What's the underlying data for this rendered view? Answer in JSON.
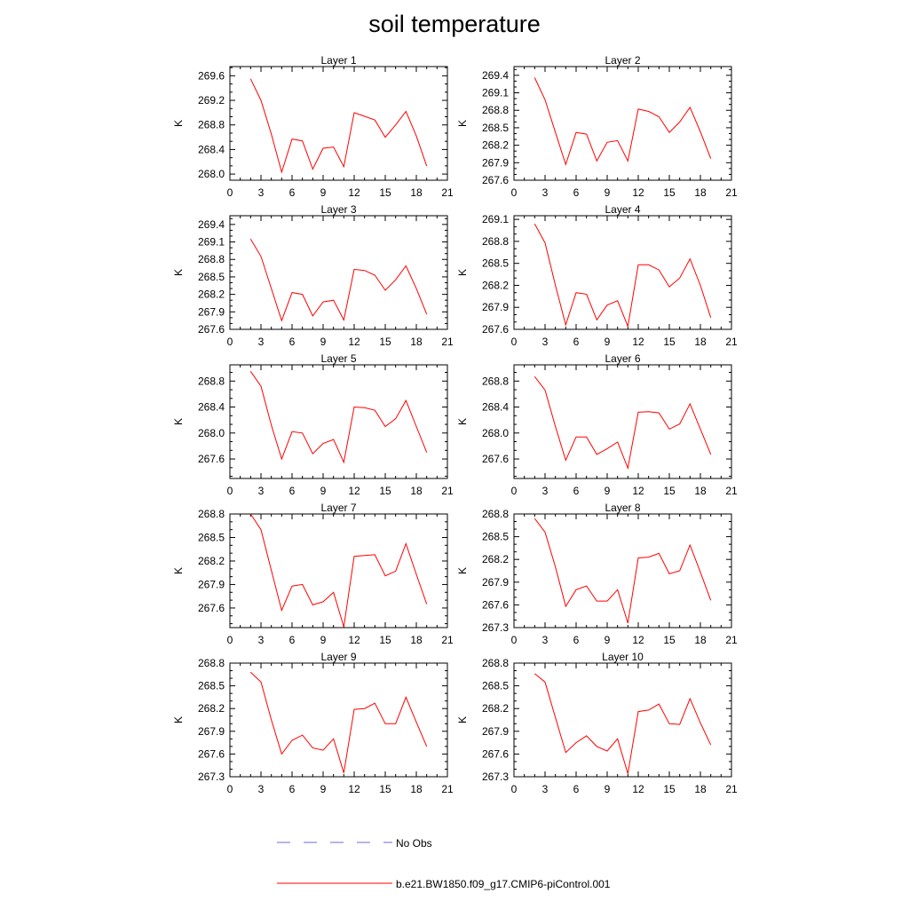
{
  "figure": {
    "title": "soil temperature",
    "legend": [
      {
        "label": "No Obs",
        "color": "#6a6ad8",
        "style": "dashed"
      },
      {
        "label": "b.e21.BW1850.f09_g17.CMIP6-piControl.001",
        "color": "#ff0000",
        "style": "solid"
      }
    ]
  },
  "chart_data": [
    {
      "type": "line",
      "title": "Layer 1",
      "ylabel": "K",
      "xlim": [
        0,
        21
      ],
      "xticks": [
        0,
        3,
        6,
        9,
        12,
        15,
        18,
        21
      ],
      "ylim": [
        267.9,
        269.75
      ],
      "yticks": [
        268.0,
        268.4,
        268.8,
        269.2,
        269.6
      ],
      "ytick_labels": [
        "268.0",
        "268.4",
        "268.8",
        "269.2",
        "269.6"
      ],
      "series": [
        {
          "name": "b.e21.BW1850.f09_g17.CMIP6-piControl.001",
          "color": "#ff0000",
          "x": [
            2,
            3,
            4,
            5,
            6,
            7,
            8,
            9,
            10,
            11,
            12,
            13,
            14,
            15,
            16,
            17,
            18,
            19
          ],
          "y": [
            269.55,
            269.2,
            268.65,
            268.03,
            268.57,
            268.54,
            268.08,
            268.42,
            268.44,
            268.12,
            269.0,
            268.94,
            268.88,
            268.6,
            268.8,
            269.02,
            268.62,
            268.13
          ]
        }
      ]
    },
    {
      "type": "line",
      "title": "Layer 2",
      "ylabel": "K",
      "xlim": [
        0,
        21
      ],
      "xticks": [
        0,
        3,
        6,
        9,
        12,
        15,
        18,
        21
      ],
      "ylim": [
        267.6,
        269.55
      ],
      "yticks": [
        267.6,
        267.9,
        268.2,
        268.5,
        268.8,
        269.1,
        269.4
      ],
      "ytick_labels": [
        "267.6",
        "267.9",
        "268.2",
        "268.5",
        "268.8",
        "269.1",
        "269.4"
      ],
      "series": [
        {
          "name": "b.e21.BW1850.f09_g17.CMIP6-piControl.001",
          "color": "#ff0000",
          "x": [
            2,
            3,
            4,
            5,
            6,
            7,
            8,
            9,
            10,
            11,
            12,
            13,
            14,
            15,
            16,
            17,
            18,
            19
          ],
          "y": [
            269.36,
            268.98,
            268.42,
            267.87,
            268.42,
            268.39,
            267.93,
            268.25,
            268.28,
            267.93,
            268.82,
            268.78,
            268.69,
            268.42,
            268.6,
            268.85,
            268.43,
            267.97
          ]
        }
      ]
    },
    {
      "type": "line",
      "title": "Layer 3",
      "ylabel": "K",
      "xlim": [
        0,
        21
      ],
      "xticks": [
        0,
        3,
        6,
        9,
        12,
        15,
        18,
        21
      ],
      "ylim": [
        267.6,
        269.55
      ],
      "yticks": [
        267.6,
        267.9,
        268.2,
        268.5,
        268.8,
        269.1,
        269.4
      ],
      "ytick_labels": [
        "267.6",
        "267.9",
        "268.2",
        "268.5",
        "268.8",
        "269.1",
        "269.4"
      ],
      "series": [
        {
          "name": "b.e21.BW1850.f09_g17.CMIP6-piControl.001",
          "color": "#ff0000",
          "x": [
            2,
            3,
            4,
            5,
            6,
            7,
            8,
            9,
            10,
            11,
            12,
            13,
            14,
            15,
            16,
            17,
            18,
            19
          ],
          "y": [
            269.15,
            268.85,
            268.3,
            267.75,
            268.23,
            268.2,
            267.83,
            268.07,
            268.1,
            267.76,
            268.63,
            268.61,
            268.53,
            268.27,
            268.45,
            268.69,
            268.3,
            267.86
          ]
        }
      ]
    },
    {
      "type": "line",
      "title": "Layer 4",
      "ylabel": "K",
      "xlim": [
        0,
        21
      ],
      "xticks": [
        0,
        3,
        6,
        9,
        12,
        15,
        18,
        21
      ],
      "ylim": [
        267.6,
        269.15
      ],
      "yticks": [
        267.6,
        267.9,
        268.2,
        268.5,
        268.8,
        269.1
      ],
      "ytick_labels": [
        "267.6",
        "267.9",
        "268.2",
        "268.5",
        "268.8",
        "269.1"
      ],
      "series": [
        {
          "name": "b.e21.BW1850.f09_g17.CMIP6-piControl.001",
          "color": "#ff0000",
          "x": [
            2,
            3,
            4,
            5,
            6,
            7,
            8,
            9,
            10,
            11,
            12,
            13,
            14,
            15,
            16,
            17,
            18,
            19
          ],
          "y": [
            269.04,
            268.78,
            268.2,
            267.66,
            268.1,
            268.08,
            267.73,
            267.93,
            267.99,
            267.64,
            268.48,
            268.48,
            268.41,
            268.18,
            268.3,
            268.56,
            268.2,
            267.76
          ]
        }
      ]
    },
    {
      "type": "line",
      "title": "Layer 5",
      "ylabel": "K",
      "xlim": [
        0,
        21
      ],
      "xticks": [
        0,
        3,
        6,
        9,
        12,
        15,
        18,
        21
      ],
      "ylim": [
        267.3,
        269.05
      ],
      "yticks": [
        267.6,
        268.0,
        268.4,
        268.8
      ],
      "ytick_labels": [
        "267.6",
        "268.0",
        "268.4",
        "268.8"
      ],
      "series": [
        {
          "name": "b.e21.BW1850.f09_g17.CMIP6-piControl.001",
          "color": "#ff0000",
          "x": [
            2,
            3,
            4,
            5,
            6,
            7,
            8,
            9,
            10,
            11,
            12,
            13,
            14,
            15,
            16,
            17,
            18,
            19
          ],
          "y": [
            268.95,
            268.72,
            268.12,
            267.6,
            268.02,
            268.0,
            267.68,
            267.84,
            267.9,
            267.55,
            268.4,
            268.39,
            268.35,
            268.1,
            268.22,
            268.5,
            268.1,
            267.7
          ]
        }
      ]
    },
    {
      "type": "line",
      "title": "Layer 6",
      "ylabel": "K",
      "xlim": [
        0,
        21
      ],
      "xticks": [
        0,
        3,
        6,
        9,
        12,
        15,
        18,
        21
      ],
      "ylim": [
        267.3,
        269.05
      ],
      "yticks": [
        267.6,
        268.0,
        268.4,
        268.8
      ],
      "ytick_labels": [
        "267.6",
        "268.0",
        "268.4",
        "268.8"
      ],
      "series": [
        {
          "name": "b.e21.BW1850.f09_g17.CMIP6-piControl.001",
          "color": "#ff0000",
          "x": [
            2,
            3,
            4,
            5,
            6,
            7,
            8,
            9,
            10,
            11,
            12,
            13,
            14,
            15,
            16,
            17,
            18,
            19
          ],
          "y": [
            268.87,
            268.66,
            268.1,
            267.58,
            267.94,
            267.94,
            267.67,
            267.76,
            267.86,
            267.46,
            268.32,
            268.33,
            268.31,
            268.06,
            268.14,
            268.45,
            268.06,
            267.67
          ]
        }
      ]
    },
    {
      "type": "line",
      "title": "Layer 7",
      "ylabel": "K",
      "xlim": [
        0,
        21
      ],
      "xticks": [
        0,
        3,
        6,
        9,
        12,
        15,
        18,
        21
      ],
      "ylim": [
        267.35,
        268.8
      ],
      "yticks": [
        267.6,
        267.9,
        268.2,
        268.5,
        268.8
      ],
      "ytick_labels": [
        "267.6",
        "267.9",
        "268.2",
        "268.5",
        "268.8"
      ],
      "series": [
        {
          "name": "b.e21.BW1850.f09_g17.CMIP6-piControl.001",
          "color": "#ff0000",
          "x": [
            2,
            3,
            4,
            5,
            6,
            7,
            8,
            9,
            10,
            11,
            12,
            13,
            14,
            15,
            16,
            17,
            18,
            19
          ],
          "y": [
            268.8,
            268.6,
            268.08,
            267.57,
            267.88,
            267.9,
            267.64,
            267.68,
            267.8,
            267.36,
            268.26,
            268.27,
            268.28,
            268.01,
            268.07,
            268.42,
            268.03,
            267.65
          ]
        }
      ]
    },
    {
      "type": "line",
      "title": "Layer 8",
      "ylabel": "K",
      "xlim": [
        0,
        21
      ],
      "xticks": [
        0,
        3,
        6,
        9,
        12,
        15,
        18,
        21
      ],
      "ylim": [
        267.3,
        268.8
      ],
      "yticks": [
        267.3,
        267.6,
        267.9,
        268.2,
        268.5,
        268.8
      ],
      "ytick_labels": [
        "267.3",
        "267.6",
        "267.9",
        "268.2",
        "268.5",
        "268.8"
      ],
      "series": [
        {
          "name": "b.e21.BW1850.f09_g17.CMIP6-piControl.001",
          "color": "#ff0000",
          "x": [
            2,
            3,
            4,
            5,
            6,
            7,
            8,
            9,
            10,
            11,
            12,
            13,
            14,
            15,
            16,
            17,
            18,
            19
          ],
          "y": [
            268.74,
            268.56,
            268.1,
            267.58,
            267.8,
            267.85,
            267.65,
            267.65,
            267.8,
            267.36,
            268.22,
            268.23,
            268.28,
            268.01,
            268.05,
            268.39,
            268.03,
            267.66
          ]
        }
      ]
    },
    {
      "type": "line",
      "title": "Layer 9",
      "ylabel": "K",
      "xlim": [
        0,
        21
      ],
      "xticks": [
        0,
        3,
        6,
        9,
        12,
        15,
        18,
        21
      ],
      "ylim": [
        267.3,
        268.8
      ],
      "yticks": [
        267.3,
        267.6,
        267.9,
        268.2,
        268.5,
        268.8
      ],
      "ytick_labels": [
        "267.3",
        "267.6",
        "267.9",
        "268.2",
        "268.5",
        "268.8"
      ],
      "series": [
        {
          "name": "b.e21.BW1850.f09_g17.CMIP6-piControl.001",
          "color": "#ff0000",
          "x": [
            2,
            3,
            4,
            5,
            6,
            7,
            8,
            9,
            10,
            11,
            12,
            13,
            14,
            15,
            16,
            17,
            18,
            19
          ],
          "y": [
            268.68,
            268.55,
            268.05,
            267.6,
            267.78,
            267.85,
            267.68,
            267.65,
            267.8,
            267.35,
            268.19,
            268.2,
            268.27,
            268.0,
            268.0,
            268.35,
            268.02,
            267.7
          ]
        }
      ]
    },
    {
      "type": "line",
      "title": "Layer 10",
      "ylabel": "K",
      "xlim": [
        0,
        21
      ],
      "xticks": [
        0,
        3,
        6,
        9,
        12,
        15,
        18,
        21
      ],
      "ylim": [
        267.3,
        268.8
      ],
      "yticks": [
        267.3,
        267.6,
        267.9,
        268.2,
        268.5,
        268.8
      ],
      "ytick_labels": [
        "267.3",
        "267.6",
        "267.9",
        "268.2",
        "268.5",
        "268.8"
      ],
      "series": [
        {
          "name": "b.e21.BW1850.f09_g17.CMIP6-piControl.001",
          "color": "#ff0000",
          "x": [
            2,
            3,
            4,
            5,
            6,
            7,
            8,
            9,
            10,
            11,
            12,
            13,
            14,
            15,
            16,
            17,
            18,
            19
          ],
          "y": [
            268.66,
            268.55,
            268.08,
            267.62,
            267.75,
            267.84,
            267.7,
            267.64,
            267.8,
            267.34,
            268.16,
            268.18,
            268.26,
            268.0,
            267.99,
            268.33,
            268.01,
            267.72
          ]
        }
      ]
    }
  ]
}
